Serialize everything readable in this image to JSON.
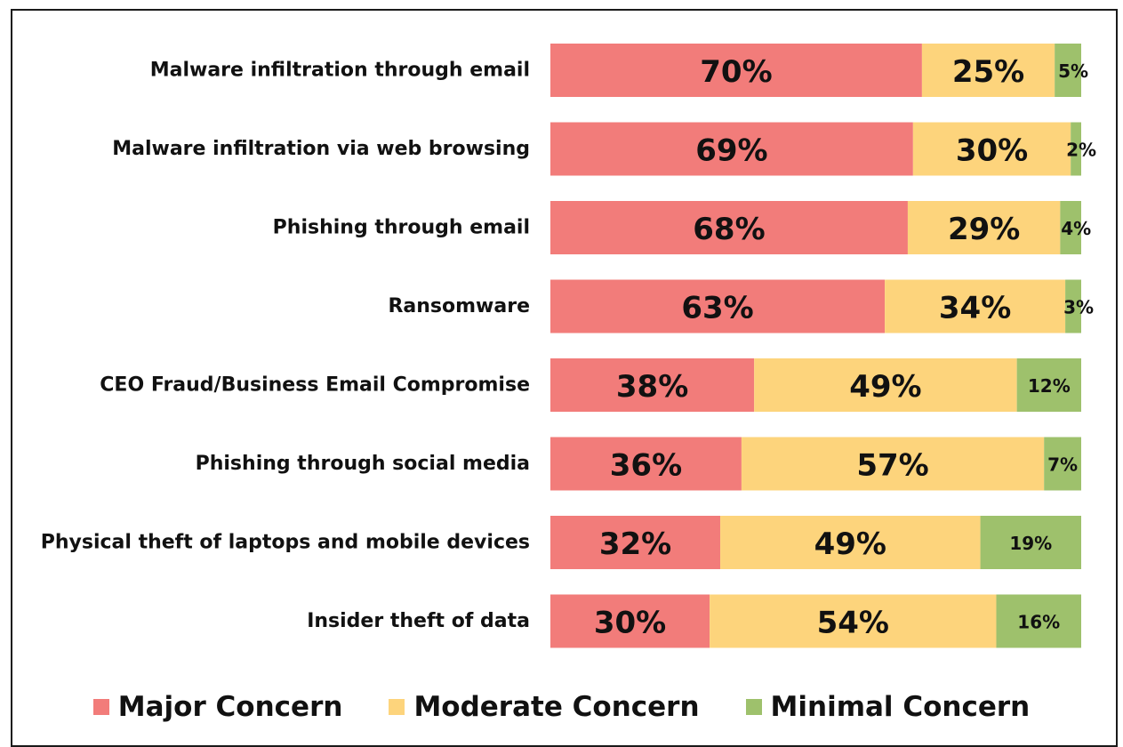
{
  "chart_data": {
    "type": "bar",
    "orientation": "horizontal",
    "stacked": true,
    "title": "",
    "xlabel": "",
    "ylabel": "",
    "xlim": [
      0,
      100
    ],
    "grid": false,
    "legend_position": "bottom",
    "categories": [
      "Malware infiltration through email",
      "Malware infiltration via web browsing",
      "Phishing through email",
      "Ransomware",
      "CEO Fraud/Business Email Compromise",
      "Phishing through social media",
      "Physical theft of laptops and mobile devices",
      "Insider theft of data"
    ],
    "series": [
      {
        "name": "Major Concern",
        "color": "#f27c7a",
        "values": [
          70,
          69,
          68,
          63,
          38,
          36,
          32,
          30
        ],
        "labels": [
          "70%",
          "69%",
          "68%",
          "63%",
          "38%",
          "36%",
          "32%",
          "30%"
        ]
      },
      {
        "name": "Moderate Concern",
        "color": "#fdd47c",
        "values": [
          25,
          30,
          29,
          34,
          49,
          57,
          49,
          54
        ],
        "labels": [
          "25%",
          "30%",
          "29%",
          "34%",
          "49%",
          "57%",
          "49%",
          "54%"
        ]
      },
      {
        "name": "Minimal Concern",
        "color": "#9ec16c",
        "values": [
          5,
          2,
          4,
          3,
          12,
          7,
          19,
          16
        ],
        "labels": [
          "5%",
          "2%",
          "4%",
          "3%",
          "12%",
          "7%",
          "19%",
          "16%"
        ]
      }
    ]
  }
}
